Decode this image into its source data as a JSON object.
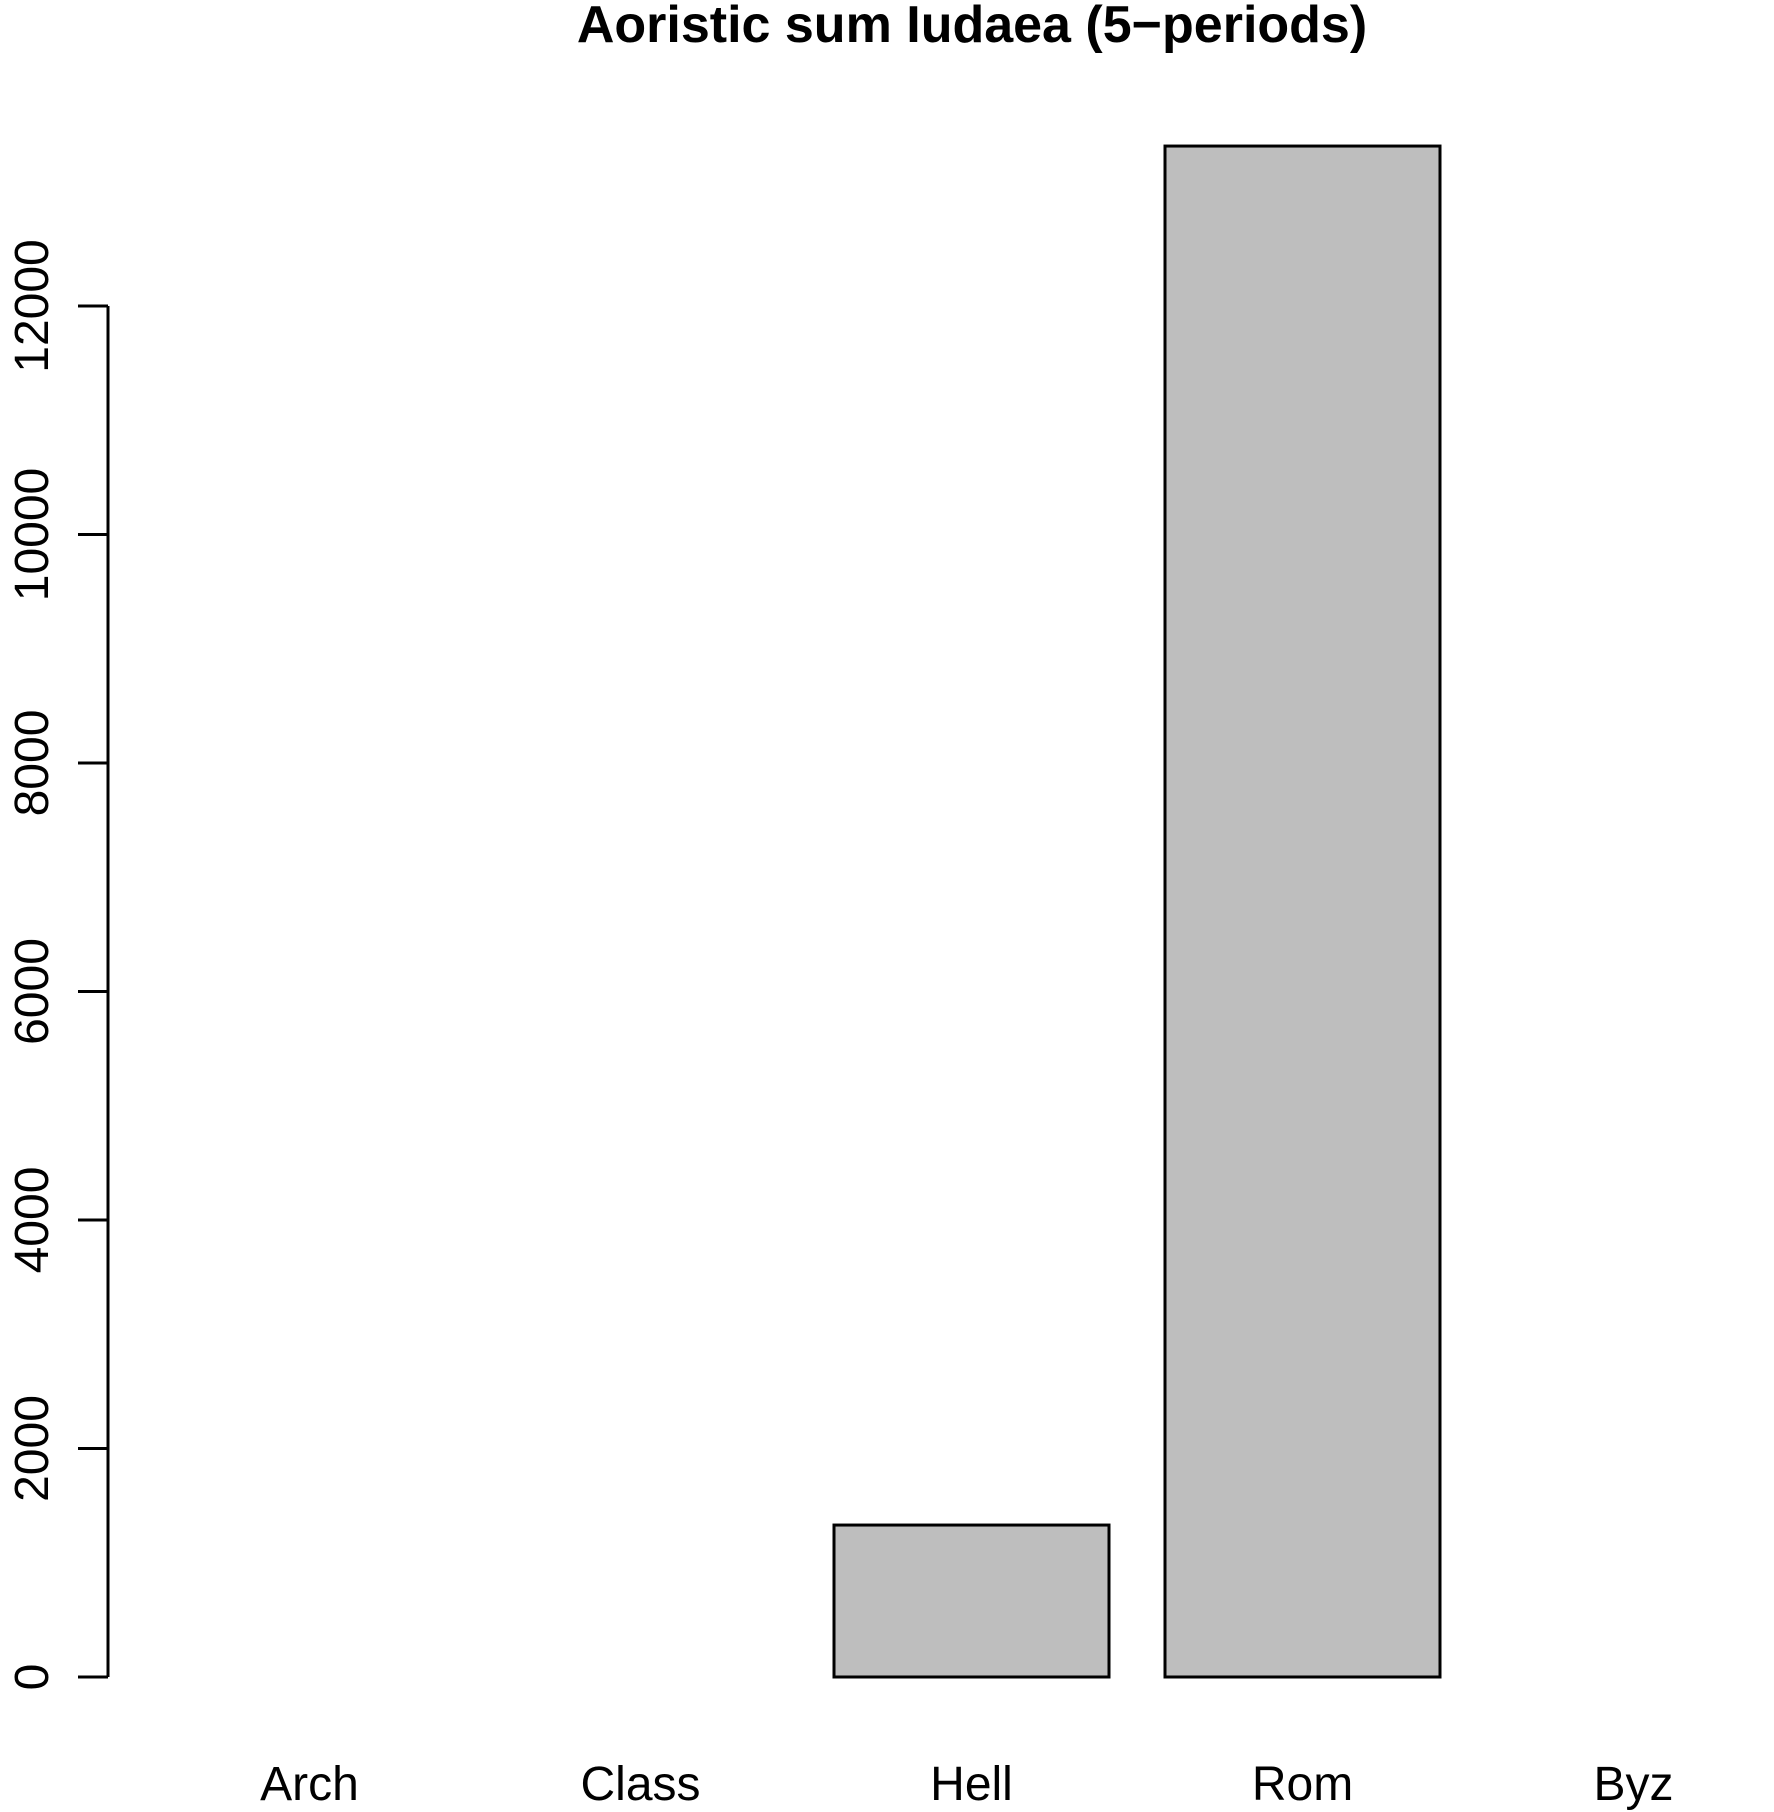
{
  "chart_data": {
    "type": "bar",
    "title": "Aoristic sum Iudaea (5−periods)",
    "xlabel": "",
    "ylabel": "",
    "categories": [
      "Arch",
      "Class",
      "Hell",
      "Rom",
      "Byz"
    ],
    "values": [
      0,
      0,
      1330,
      13400,
      0
    ],
    "yticks": [
      0,
      2000,
      4000,
      6000,
      8000,
      10000,
      12000
    ],
    "ylim": [
      0,
      14000
    ],
    "grid": false,
    "legend": "none",
    "colors": {
      "bar_fill": "#bebebe",
      "bar_stroke": "#000000",
      "axis": "#000000"
    }
  }
}
